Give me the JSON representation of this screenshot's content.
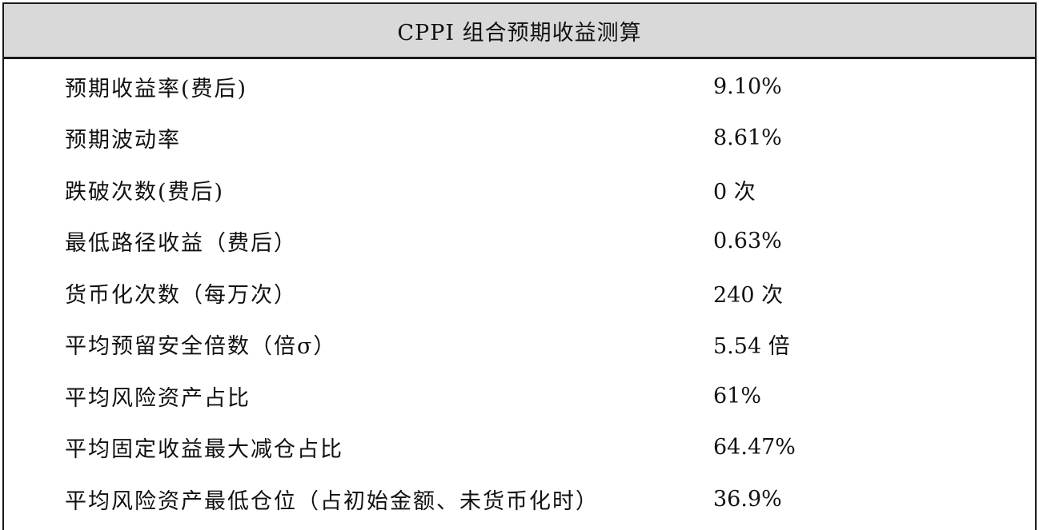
{
  "table": {
    "title": "CPPI 组合预期收益测算",
    "rows": [
      {
        "label": "预期收益率(费后)",
        "value": "9.10%"
      },
      {
        "label": "预期波动率",
        "value": "8.61%"
      },
      {
        "label": "跌破次数(费后)",
        "value": "0 次"
      },
      {
        "label": "最低路径收益（费后）",
        "value": "0.63%"
      },
      {
        "label": "货币化次数（每万次）",
        "value": "240 次"
      },
      {
        "label": "平均预留安全倍数（倍σ）",
        "value": "5.54 倍"
      },
      {
        "label": "平均风险资产占比",
        "value": "61%"
      },
      {
        "label": "平均固定收益最大减仓占比",
        "value": "64.47%"
      },
      {
        "label": "平均风险资产最低仓位（占初始金额、未货币化时）",
        "value": "36.9%"
      }
    ]
  }
}
